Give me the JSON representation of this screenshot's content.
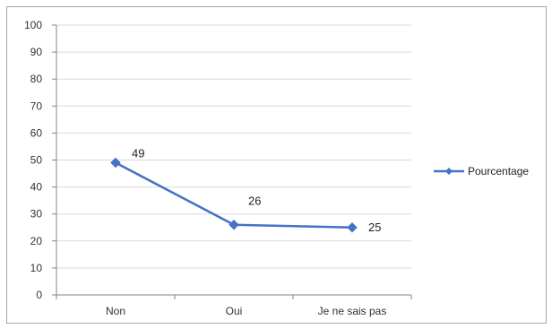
{
  "chart_data": {
    "type": "line",
    "title": "",
    "xlabel": "",
    "ylabel": "",
    "categories": [
      "Non",
      "Oui",
      "Je ne sais pas"
    ],
    "series": [
      {
        "name": "Pourcentage",
        "values": [
          49,
          26,
          25
        ],
        "color": "#4472c4",
        "marker": "diamond"
      }
    ],
    "ylim": [
      0,
      100
    ],
    "yticks": [
      0,
      10,
      20,
      30,
      40,
      50,
      60,
      70,
      80,
      90,
      100
    ],
    "grid": true,
    "legend_position": "right",
    "data_labels": [
      "49",
      "26",
      "25"
    ]
  }
}
